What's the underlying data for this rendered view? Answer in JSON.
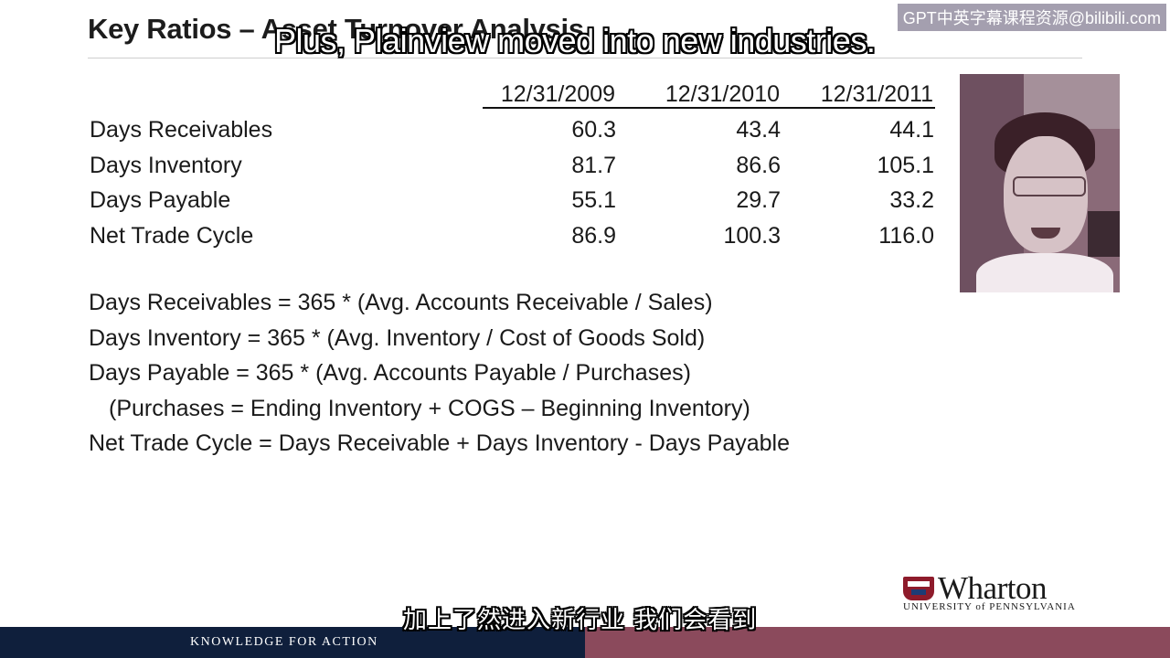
{
  "slide": {
    "title": "Key Ratios – Asset Turnover Analysis",
    "table": {
      "headers": [
        "12/31/2009",
        "12/31/2010",
        "12/31/2011"
      ],
      "rows": [
        {
          "label": "Days Receivables",
          "values": [
            "60.3",
            "43.4",
            "44.1"
          ]
        },
        {
          "label": "Days Inventory",
          "values": [
            "81.7",
            "86.6",
            "105.1"
          ]
        },
        {
          "label": "Days Payable",
          "values": [
            "55.1",
            "29.7",
            "33.2"
          ]
        },
        {
          "label": "Net Trade Cycle",
          "values": [
            "86.9",
            "100.3",
            "116.0"
          ]
        }
      ]
    },
    "formulas": [
      "Days Receivables =  365 * (Avg. Accounts Receivable / Sales)",
      "Days Inventory = 365 * (Avg. Inventory / Cost of Goods Sold)",
      "Days Payable = 365 * (Avg. Accounts Payable / Purchases)",
      "(Purchases = Ending Inventory + COGS – Beginning Inventory)",
      "Net Trade Cycle = Days Receivable + Days Inventory - Days Payable"
    ]
  },
  "logo": {
    "name": "Wharton",
    "university": "UNIVERSITY of PENNSYLVANIA"
  },
  "footer": {
    "tagline": "KNOWLEDGE FOR ACTION",
    "left_color": "#0f1f3c",
    "right_color": "#8b4a5c"
  },
  "subtitles": {
    "english": "Plus, Plainview moved into new industries.",
    "chinese": "加上了然进入新行业 我们会看到"
  },
  "watermark": "GPT中英字幕课程资源@bilibili.com"
}
